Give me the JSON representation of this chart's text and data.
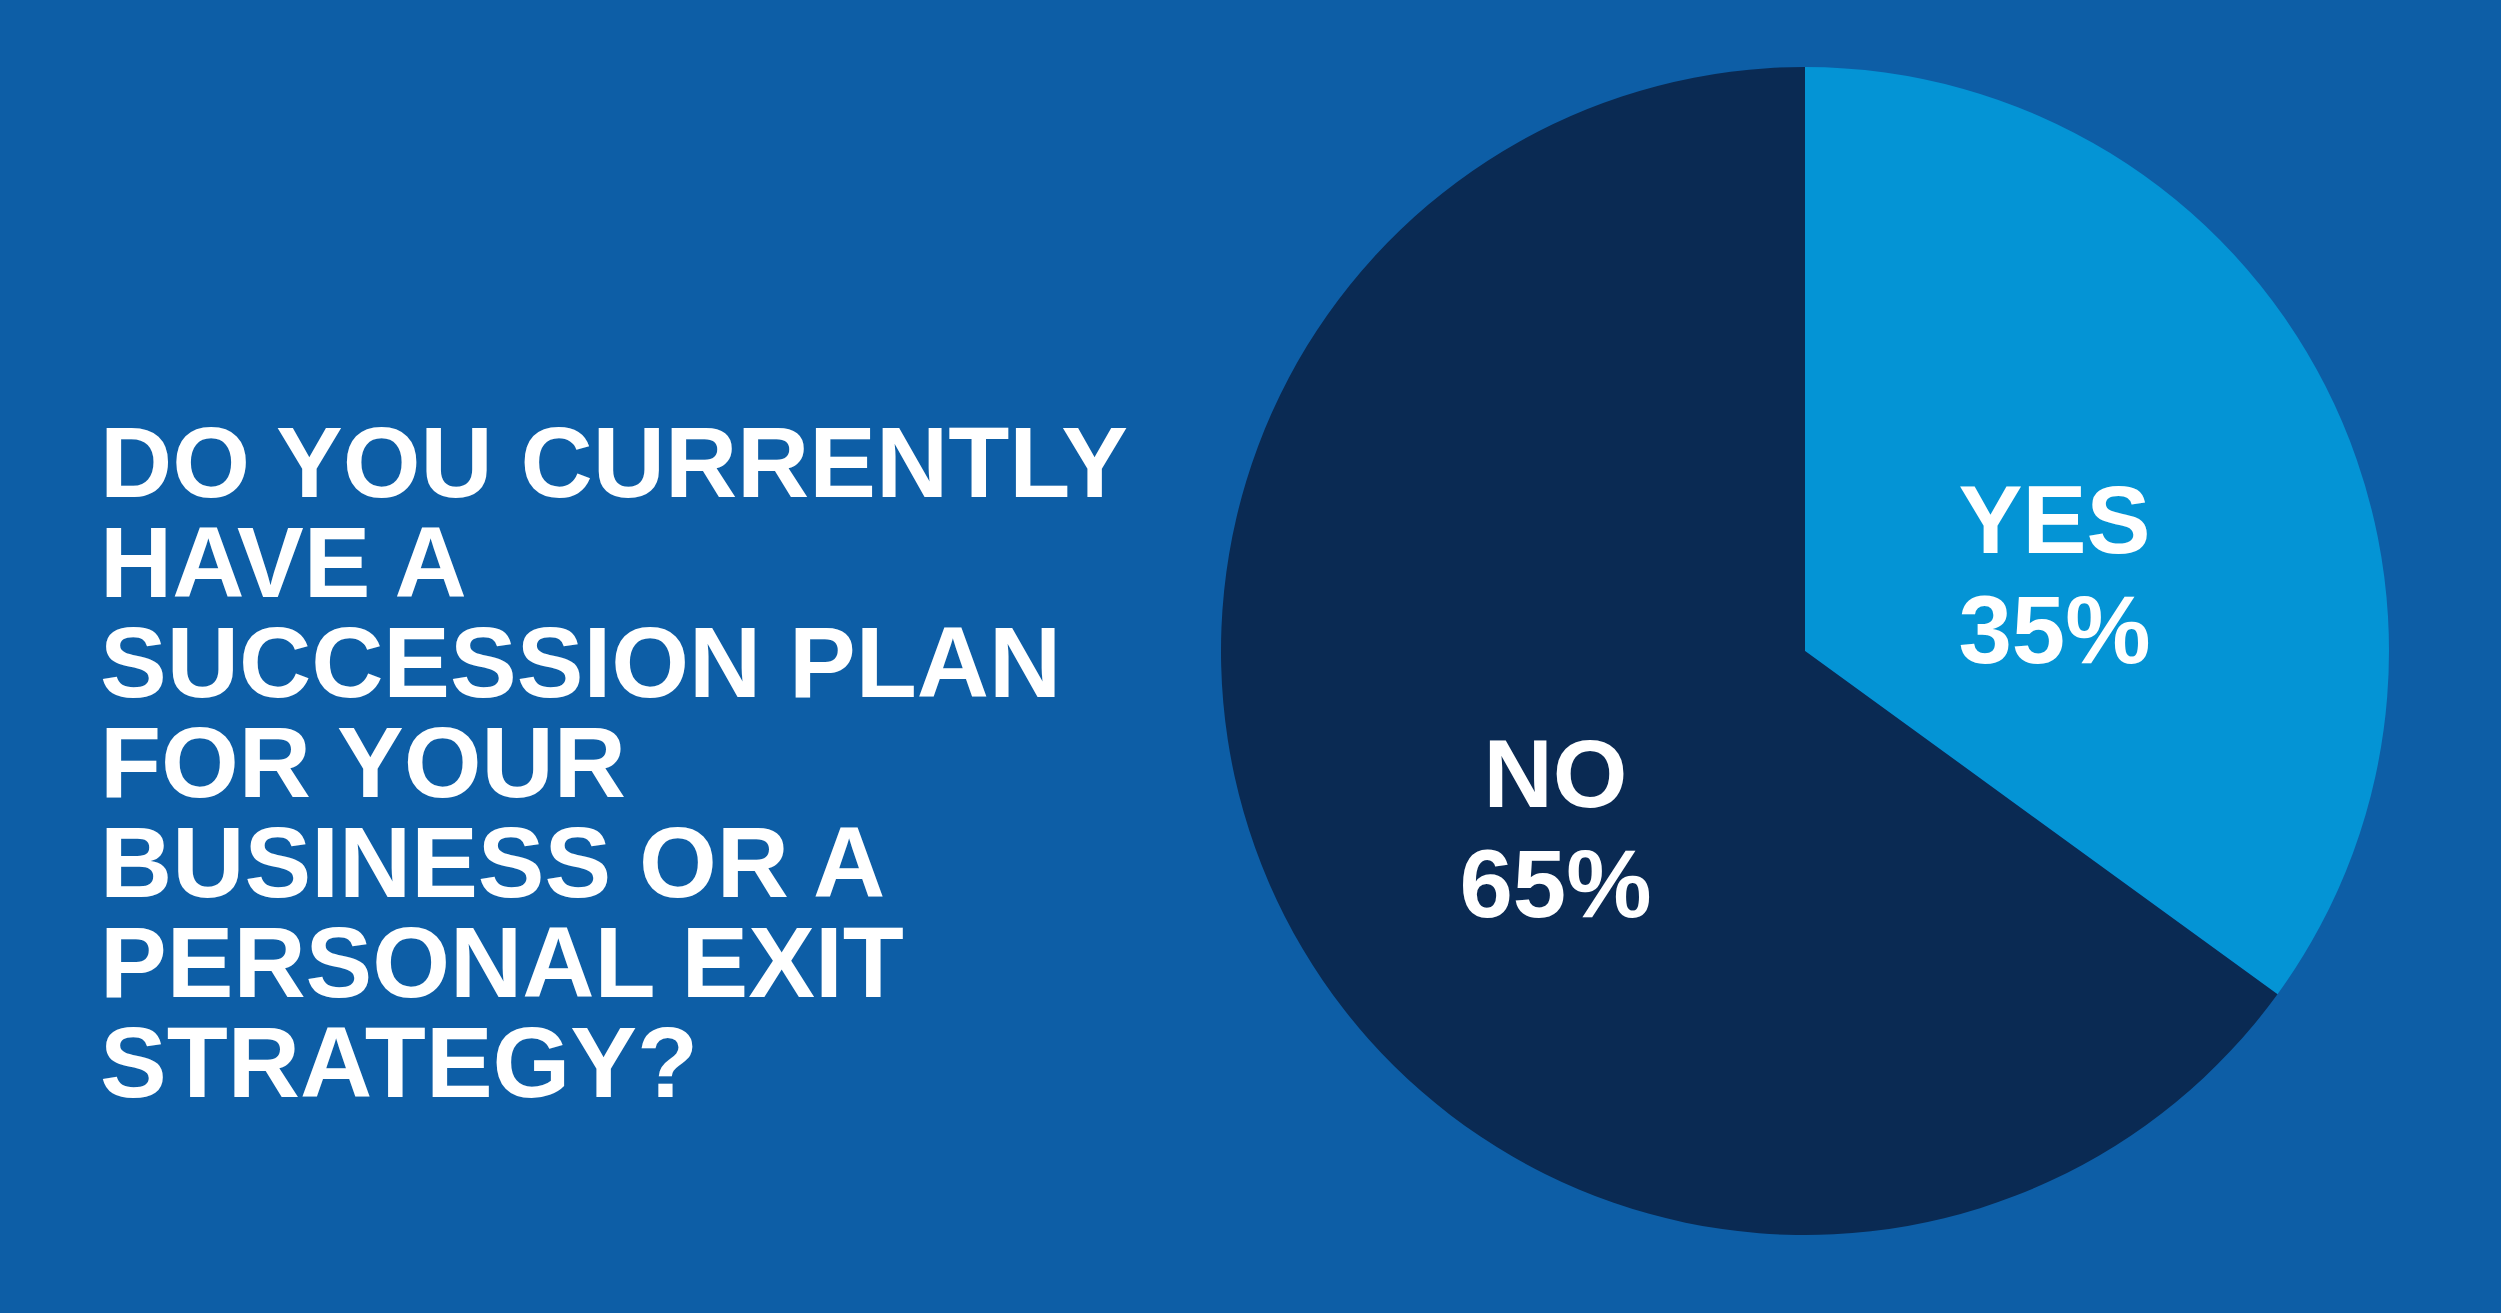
{
  "chart_data": {
    "type": "pie",
    "title": "DO YOU CURRENTLY HAVE A SUCCESSION PLAN FOR YOUR BUSINESS OR A PERSONAL EXIT STRATEGY?",
    "categories": [
      "YES",
      "NO"
    ],
    "values": [
      35,
      65
    ],
    "colors": [
      "#0494d5",
      "#0a2a53"
    ],
    "value_labels": [
      "35%",
      "65%"
    ],
    "legend": false
  }
}
